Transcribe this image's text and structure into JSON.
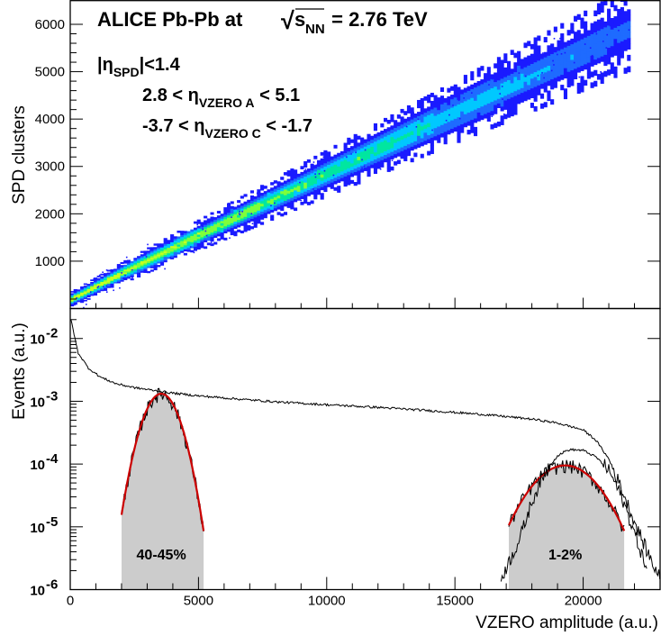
{
  "chart_data": [
    {
      "type": "heatmap",
      "panel": "top",
      "ylabel": "SPD clusters",
      "xlim": [
        0,
        23000
      ],
      "ylim": [
        0,
        6500
      ],
      "y_ticks": [
        1000,
        2000,
        3000,
        4000,
        5000,
        6000
      ],
      "colormap": [
        "#1a1aff",
        "#1e6bff",
        "#00c8ff",
        "#00e6a0",
        "#7fff3a",
        "#c8ff1e"
      ],
      "band_center": [
        [
          0,
          200
        ],
        [
          2000,
          760
        ],
        [
          5000,
          1560
        ],
        [
          10000,
          2870
        ],
        [
          15000,
          4160
        ],
        [
          20000,
          5440
        ],
        [
          21800,
          5920
        ]
      ],
      "annotations": {
        "title_main": "ALICE Pb-Pb at",
        "title_sqrt": "√",
        "title_s": "s",
        "title_nn_sub": "NN",
        "title_energy": " = 2.76 TeV",
        "line1_pre": "|η",
        "line1_sub": "SPD",
        "line1_post": "|<1.4",
        "line2_pre": "2.8 < η",
        "line2_sub": "VZERO A",
        "line2_post": " < 5.1",
        "line3_pre": "-3.7 < η",
        "line3_sub": "VZERO C",
        "line3_post": " < -1.7"
      }
    },
    {
      "type": "line",
      "panel": "bottom",
      "yscale": "log",
      "xlabel": "VZERO amplitude (a.u.)",
      "ylabel": "Events (a.u.)",
      "xlim": [
        0,
        23000
      ],
      "ylim": [
        1e-06,
        0.03
      ],
      "x_ticks": [
        0,
        5000,
        10000,
        15000,
        20000
      ],
      "x_tick_labels": [
        "0",
        "5000",
        "10000",
        "15000",
        "20000"
      ],
      "y_ticks": [
        1e-06,
        1e-05,
        0.0001,
        0.001,
        0.01
      ],
      "y_tick_base": "10",
      "y_tick_exponents": [
        "-6",
        "-5",
        "-4",
        "-3",
        "-2"
      ],
      "series": [
        {
          "color": "#000000",
          "x": [
            30,
            300,
            700,
            1200,
            1800,
            2500,
            3300,
            4000,
            5000,
            6000,
            8000,
            10000,
            12000,
            14000,
            16000,
            17000,
            18000,
            19000,
            20000,
            20500,
            21000,
            21500,
            22000,
            22500,
            23000
          ],
          "y": [
            0.02,
            0.006,
            0.0034,
            0.0024,
            0.0019,
            0.00165,
            0.00148,
            0.00135,
            0.00122,
            0.00113,
            0.00098,
            0.00088,
            0.0008,
            0.00071,
            0.00062,
            0.00057,
            0.00052,
            0.00045,
            0.00035,
            0.00024,
            0.00012,
            4e-05,
            1.2e-05,
            4e-06,
            1.5e-06
          ]
        },
        {
          "color": "#000000",
          "x": [
            16800,
            17500,
            18000,
            18500,
            19000,
            19300,
            19500,
            20000,
            20500,
            21000,
            21500,
            22000,
            22500
          ],
          "y": [
            1.5e-06,
            6e-06,
            2.5e-05,
            7.5e-05,
            0.000135,
            0.00016,
            0.00017,
            0.000165,
            0.00013,
            8e-05,
            3e-05,
            8e-06,
            2e-06
          ]
        }
      ],
      "peaks": [
        {
          "label": "40-45%",
          "center": 3550,
          "sigma": 520,
          "amplitude": 0.00132,
          "x_from": 2000,
          "x_to": 5200,
          "fit_color": "#cc0000",
          "fill": "#cccccc"
        },
        {
          "label": "1-2%",
          "center": 19300,
          "sigma": 1050,
          "amplitude": 9.5e-05,
          "x_from": 17100,
          "x_to": 21600,
          "fit_color": "#cc0000",
          "fill": "#cccccc"
        }
      ]
    }
  ]
}
